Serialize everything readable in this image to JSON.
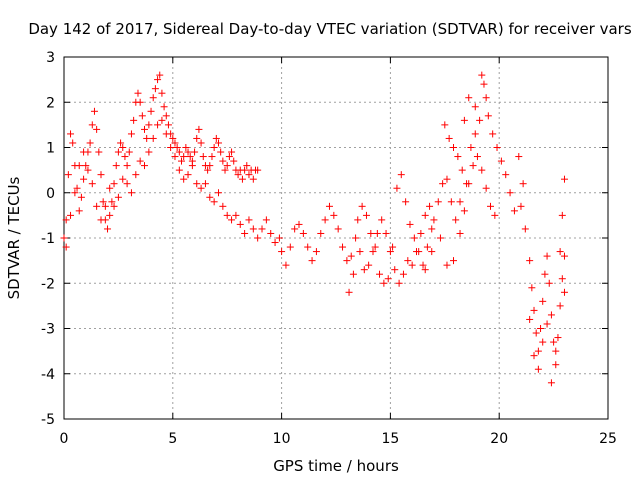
{
  "chart_data": {
    "type": "scatter",
    "title": "Day 142 of 2017, Sidereal Day-to-day VTEC variation (SDTVAR) for receiver vars",
    "xlabel": "GPS time / hours",
    "ylabel": "SDTVAR / TECUs",
    "xlim": [
      0,
      25
    ],
    "ylim": [
      -5,
      3
    ],
    "xticks": [
      "0",
      "5",
      "10",
      "15",
      "20",
      "25"
    ],
    "yticks": [
      "3",
      "2",
      "1",
      "0",
      "-1",
      "-2",
      "-3",
      "-4",
      "-5"
    ],
    "grid": true,
    "marker": "+",
    "color": "#ff0000",
    "series": [
      {
        "name": "vars",
        "points": [
          [
            0.0,
            -1.0
          ],
          [
            0.1,
            -0.6
          ],
          [
            0.2,
            0.4
          ],
          [
            0.3,
            1.3
          ],
          [
            0.4,
            1.1
          ],
          [
            0.5,
            0.6
          ],
          [
            0.6,
            0.1
          ],
          [
            0.7,
            -0.4
          ],
          [
            0.8,
            -0.1
          ],
          [
            0.9,
            0.3
          ],
          [
            1.0,
            0.6
          ],
          [
            1.1,
            0.9
          ],
          [
            1.2,
            1.1
          ],
          [
            1.3,
            1.5
          ],
          [
            1.4,
            1.8
          ],
          [
            1.5,
            1.4
          ],
          [
            1.6,
            0.9
          ],
          [
            1.7,
            0.4
          ],
          [
            1.8,
            -0.2
          ],
          [
            1.9,
            -0.6
          ],
          [
            2.0,
            -0.8
          ],
          [
            2.1,
            -0.5
          ],
          [
            2.2,
            -0.2
          ],
          [
            2.3,
            0.2
          ],
          [
            2.4,
            0.6
          ],
          [
            2.5,
            0.9
          ],
          [
            2.6,
            1.1
          ],
          [
            2.7,
            1.0
          ],
          [
            2.8,
            0.8
          ],
          [
            2.9,
            0.6
          ],
          [
            3.0,
            0.9
          ],
          [
            3.1,
            1.3
          ],
          [
            3.2,
            1.6
          ],
          [
            3.3,
            2.0
          ],
          [
            3.4,
            2.2
          ],
          [
            3.5,
            2.0
          ],
          [
            3.6,
            1.7
          ],
          [
            3.7,
            1.4
          ],
          [
            3.8,
            1.2
          ],
          [
            3.9,
            1.5
          ],
          [
            4.0,
            1.8
          ],
          [
            4.1,
            2.1
          ],
          [
            4.2,
            2.3
          ],
          [
            4.3,
            2.5
          ],
          [
            4.4,
            2.6
          ],
          [
            4.5,
            2.2
          ],
          [
            4.6,
            1.9
          ],
          [
            4.7,
            1.7
          ],
          [
            4.8,
            1.5
          ],
          [
            4.9,
            1.3
          ],
          [
            5.0,
            1.2
          ],
          [
            5.1,
            1.1
          ],
          [
            5.2,
            1.0
          ],
          [
            5.3,
            0.9
          ],
          [
            5.4,
            0.7
          ],
          [
            5.5,
            0.8
          ],
          [
            5.6,
            1.0
          ],
          [
            5.7,
            0.9
          ],
          [
            5.8,
            0.8
          ],
          [
            5.9,
            0.7
          ],
          [
            6.0,
            0.9
          ],
          [
            6.1,
            1.2
          ],
          [
            6.2,
            1.4
          ],
          [
            6.3,
            1.1
          ],
          [
            6.4,
            0.8
          ],
          [
            6.5,
            0.6
          ],
          [
            6.6,
            0.5
          ],
          [
            6.7,
            0.6
          ],
          [
            6.8,
            0.8
          ],
          [
            6.9,
            1.0
          ],
          [
            7.0,
            1.2
          ],
          [
            7.1,
            1.1
          ],
          [
            7.2,
            0.9
          ],
          [
            7.3,
            0.7
          ],
          [
            7.4,
            0.5
          ],
          [
            7.5,
            0.6
          ],
          [
            7.6,
            0.8
          ],
          [
            7.7,
            0.9
          ],
          [
            7.8,
            0.7
          ],
          [
            7.9,
            0.5
          ],
          [
            8.0,
            0.4
          ],
          [
            8.1,
            0.5
          ],
          [
            8.2,
            0.3
          ],
          [
            8.3,
            0.5
          ],
          [
            8.4,
            0.6
          ],
          [
            8.5,
            0.4
          ],
          [
            8.6,
            0.5
          ],
          [
            8.7,
            0.3
          ],
          [
            8.8,
            0.5
          ],
          [
            8.9,
            0.5
          ],
          [
            0.1,
            -1.2
          ],
          [
            0.3,
            -0.5
          ],
          [
            0.5,
            0.0
          ],
          [
            0.7,
            0.6
          ],
          [
            0.9,
            0.9
          ],
          [
            1.1,
            0.5
          ],
          [
            1.3,
            0.2
          ],
          [
            1.5,
            -0.3
          ],
          [
            1.7,
            -0.6
          ],
          [
            1.9,
            -0.3
          ],
          [
            2.1,
            0.1
          ],
          [
            2.3,
            -0.3
          ],
          [
            2.5,
            -0.1
          ],
          [
            2.7,
            0.3
          ],
          [
            2.9,
            0.2
          ],
          [
            3.1,
            0.0
          ],
          [
            3.3,
            0.4
          ],
          [
            3.5,
            0.7
          ],
          [
            3.7,
            0.6
          ],
          [
            3.9,
            0.9
          ],
          [
            4.1,
            1.2
          ],
          [
            4.3,
            1.5
          ],
          [
            4.5,
            1.6
          ],
          [
            4.7,
            1.3
          ],
          [
            4.9,
            1.0
          ],
          [
            5.1,
            0.8
          ],
          [
            5.3,
            0.5
          ],
          [
            5.5,
            0.3
          ],
          [
            5.7,
            0.4
          ],
          [
            5.9,
            0.6
          ],
          [
            6.1,
            0.2
          ],
          [
            6.3,
            0.1
          ],
          [
            6.5,
            0.2
          ],
          [
            6.7,
            -0.1
          ],
          [
            6.9,
            -0.2
          ],
          [
            7.1,
            0.0
          ],
          [
            7.3,
            -0.3
          ],
          [
            7.5,
            -0.5
          ],
          [
            7.7,
            -0.6
          ],
          [
            7.9,
            -0.5
          ],
          [
            8.1,
            -0.7
          ],
          [
            8.3,
            -0.9
          ],
          [
            8.5,
            -0.6
          ],
          [
            8.7,
            -0.8
          ],
          [
            8.9,
            -1.0
          ],
          [
            9.1,
            -0.8
          ],
          [
            9.3,
            -0.6
          ],
          [
            9.5,
            -0.9
          ],
          [
            9.7,
            -1.1
          ],
          [
            9.9,
            -1.0
          ],
          [
            10.0,
            -1.3
          ],
          [
            10.2,
            -1.6
          ],
          [
            10.4,
            -1.2
          ],
          [
            10.6,
            -0.8
          ],
          [
            10.8,
            -0.7
          ],
          [
            11.0,
            -0.9
          ],
          [
            11.2,
            -1.2
          ],
          [
            11.4,
            -1.5
          ],
          [
            11.6,
            -1.3
          ],
          [
            11.8,
            -0.9
          ],
          [
            12.0,
            -0.6
          ],
          [
            12.2,
            -0.3
          ],
          [
            12.4,
            -0.5
          ],
          [
            12.6,
            -0.8
          ],
          [
            12.8,
            -1.2
          ],
          [
            13.0,
            -1.5
          ],
          [
            13.2,
            -1.4
          ],
          [
            13.4,
            -1.0
          ],
          [
            13.6,
            -1.3
          ],
          [
            13.8,
            -1.7
          ],
          [
            14.0,
            -1.6
          ],
          [
            14.2,
            -1.3
          ],
          [
            14.4,
            -0.9
          ],
          [
            14.6,
            -0.6
          ],
          [
            14.8,
            -0.9
          ],
          [
            15.0,
            -1.3
          ],
          [
            15.2,
            -1.7
          ],
          [
            15.4,
            -2.0
          ],
          [
            15.6,
            -1.8
          ],
          [
            15.8,
            -1.5
          ],
          [
            13.1,
            -2.2
          ],
          [
            13.3,
            -1.8
          ],
          [
            13.5,
            -0.6
          ],
          [
            13.7,
            -0.3
          ],
          [
            13.9,
            -0.5
          ],
          [
            14.1,
            -0.9
          ],
          [
            14.3,
            -1.2
          ],
          [
            14.5,
            -1.8
          ],
          [
            14.7,
            -2.0
          ],
          [
            14.9,
            -1.9
          ],
          [
            15.1,
            -1.2
          ],
          [
            15.3,
            0.1
          ],
          [
            15.5,
            0.4
          ],
          [
            15.7,
            -0.2
          ],
          [
            15.9,
            -0.7
          ],
          [
            16.1,
            -1.0
          ],
          [
            16.3,
            -1.3
          ],
          [
            16.5,
            -1.6
          ],
          [
            16.7,
            -1.2
          ],
          [
            16.9,
            -0.8
          ],
          [
            16.0,
            -1.6
          ],
          [
            16.2,
            -1.3
          ],
          [
            16.4,
            -0.9
          ],
          [
            16.6,
            -0.5
          ],
          [
            16.8,
            -0.3
          ],
          [
            17.0,
            -0.6
          ],
          [
            17.2,
            -0.2
          ],
          [
            17.4,
            0.2
          ],
          [
            17.6,
            0.3
          ],
          [
            17.8,
            -0.2
          ],
          [
            18.0,
            -0.6
          ],
          [
            18.2,
            -0.9
          ],
          [
            18.4,
            -0.4
          ],
          [
            18.6,
            0.2
          ],
          [
            18.8,
            0.6
          ],
          [
            19.0,
            0.8
          ],
          [
            19.2,
            0.5
          ],
          [
            19.4,
            0.1
          ],
          [
            19.6,
            -0.3
          ],
          [
            19.8,
            -0.5
          ],
          [
            17.5,
            1.5
          ],
          [
            17.7,
            1.2
          ],
          [
            17.9,
            1.0
          ],
          [
            18.1,
            0.8
          ],
          [
            18.3,
            0.5
          ],
          [
            18.5,
            0.2
          ],
          [
            18.7,
            1.0
          ],
          [
            18.9,
            1.3
          ],
          [
            19.1,
            1.6
          ],
          [
            19.3,
            2.4
          ],
          [
            19.4,
            2.1
          ],
          [
            19.5,
            1.7
          ],
          [
            19.7,
            1.3
          ],
          [
            19.9,
            1.0
          ],
          [
            20.1,
            0.7
          ],
          [
            20.3,
            0.4
          ],
          [
            20.5,
            0.0
          ],
          [
            20.7,
            -0.4
          ],
          [
            20.9,
            0.8
          ],
          [
            21.1,
            0.2
          ],
          [
            16.6,
            -1.7
          ],
          [
            16.9,
            -1.3
          ],
          [
            17.3,
            -1.0
          ],
          [
            17.6,
            -1.6
          ],
          [
            17.9,
            -1.5
          ],
          [
            18.2,
            -0.2
          ],
          [
            18.4,
            1.6
          ],
          [
            18.6,
            2.1
          ],
          [
            18.9,
            1.9
          ],
          [
            19.2,
            2.6
          ],
          [
            21.0,
            -0.3
          ],
          [
            21.2,
            -0.8
          ],
          [
            21.4,
            -1.5
          ],
          [
            21.5,
            -2.1
          ],
          [
            21.6,
            -2.6
          ],
          [
            21.7,
            -3.1
          ],
          [
            21.8,
            -3.5
          ],
          [
            21.9,
            -3.0
          ],
          [
            22.0,
            -2.4
          ],
          [
            22.1,
            -1.8
          ],
          [
            22.2,
            -1.4
          ],
          [
            22.3,
            -2.0
          ],
          [
            22.4,
            -2.7
          ],
          [
            22.5,
            -3.3
          ],
          [
            22.6,
            -3.8
          ],
          [
            22.7,
            -3.2
          ],
          [
            22.8,
            -2.5
          ],
          [
            22.9,
            -1.9
          ],
          [
            23.0,
            -1.4
          ],
          [
            23.0,
            -2.2
          ],
          [
            21.4,
            -2.8
          ],
          [
            21.6,
            -3.6
          ],
          [
            21.8,
            -3.9
          ],
          [
            22.0,
            -3.3
          ],
          [
            22.2,
            -2.9
          ],
          [
            22.4,
            -4.2
          ],
          [
            22.6,
            -3.5
          ],
          [
            22.8,
            -1.3
          ],
          [
            22.9,
            -0.5
          ],
          [
            23.0,
            0.3
          ]
        ]
      }
    ]
  }
}
